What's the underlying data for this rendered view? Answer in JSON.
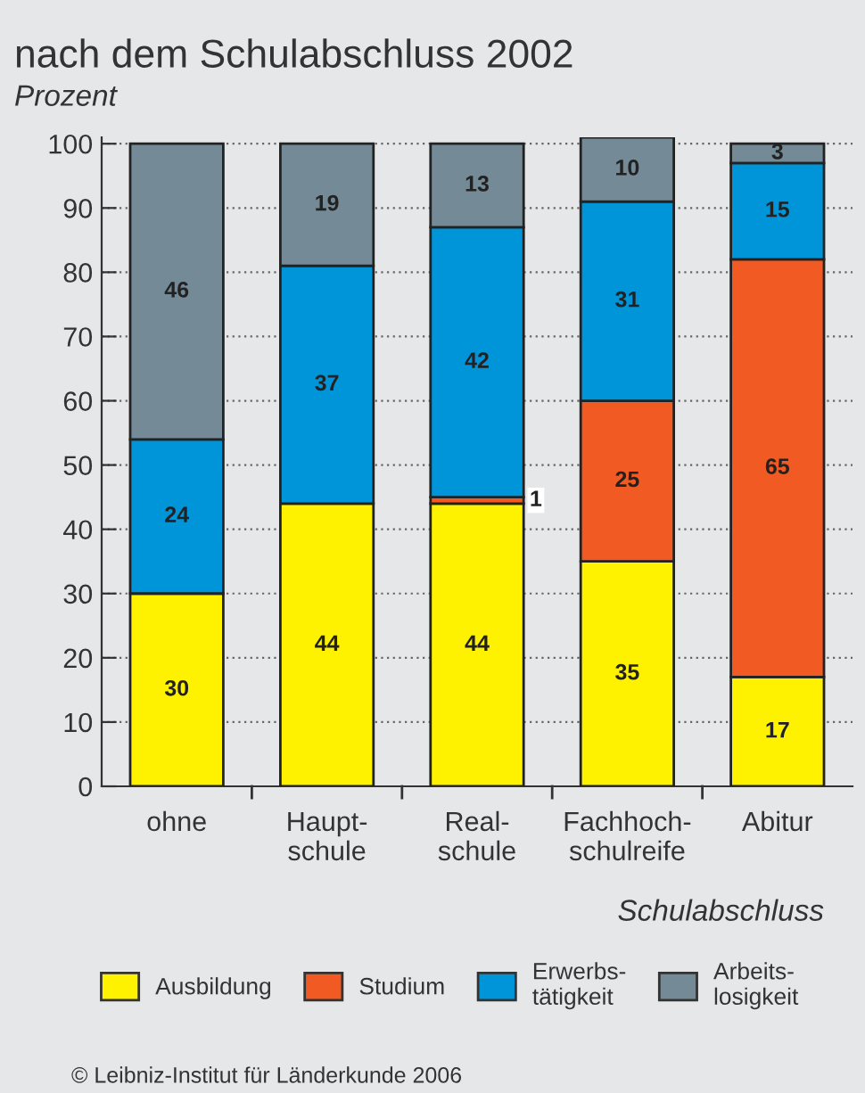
{
  "chart_data": {
    "type": "bar",
    "title": "nach dem Schulabschluss 2002",
    "ylabel": "Prozent",
    "xlabel": "Schulabschluss",
    "categories": [
      "ohne",
      "Haupt-\nschule",
      "Real-\nschule",
      "Fachhoch-\nschulreife",
      "Abitur"
    ],
    "stacked": true,
    "data_labels": true,
    "grid": "y",
    "legend": "bottom",
    "ylim": [
      0,
      101
    ],
    "yticks": [
      0,
      10,
      20,
      30,
      40,
      50,
      60,
      70,
      80,
      90,
      100
    ],
    "series": [
      {
        "name": "Ausbildung",
        "color": "#fff200",
        "values": [
          30,
          44,
          44,
          35,
          17
        ]
      },
      {
        "name": "Studium",
        "color": "#f15a22",
        "values": [
          null,
          null,
          1,
          25,
          65
        ]
      },
      {
        "name": "Erwerbs-\ntätigkeit",
        "color": "#0095d9",
        "values": [
          24,
          37,
          42,
          31,
          15
        ]
      },
      {
        "name": "Arbeits-\nlosigkeit",
        "color": "#748a96",
        "values": [
          46,
          19,
          13,
          10,
          3
        ]
      }
    ],
    "annotations": [
      "© Leibniz-Institut für Länderkunde 2006"
    ]
  }
}
